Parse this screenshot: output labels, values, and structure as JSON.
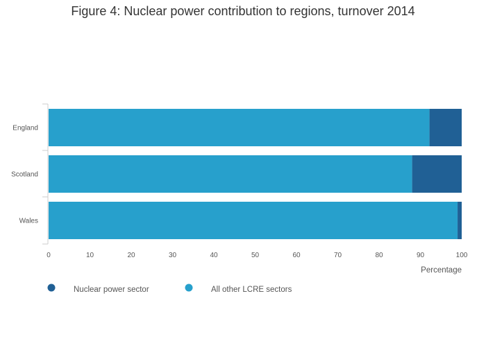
{
  "chart_data": {
    "type": "bar",
    "orientation": "horizontal",
    "stacked": true,
    "title": "Figure 4: Nuclear power contribution to regions, turnover 2014",
    "xlabel": "Percentage",
    "ylabel": "",
    "xlim": [
      0,
      100
    ],
    "xticks": [
      0,
      10,
      20,
      30,
      40,
      50,
      60,
      70,
      80,
      90,
      100
    ],
    "categories": [
      "England",
      "Scotland",
      "Wales"
    ],
    "series": [
      {
        "name": "All other LCRE sectors",
        "color": "#27a0cc",
        "values": [
          92.2,
          88.0,
          99.0
        ]
      },
      {
        "name": "Nuclear power sector",
        "color": "#206095",
        "values": [
          7.8,
          12.0,
          1.0
        ]
      }
    ],
    "legend": [
      {
        "label": "Nuclear power sector",
        "color": "#206095"
      },
      {
        "label": "All other LCRE sectors",
        "color": "#27a0cc"
      }
    ],
    "grid": false,
    "legend_position": "bottom-left"
  }
}
